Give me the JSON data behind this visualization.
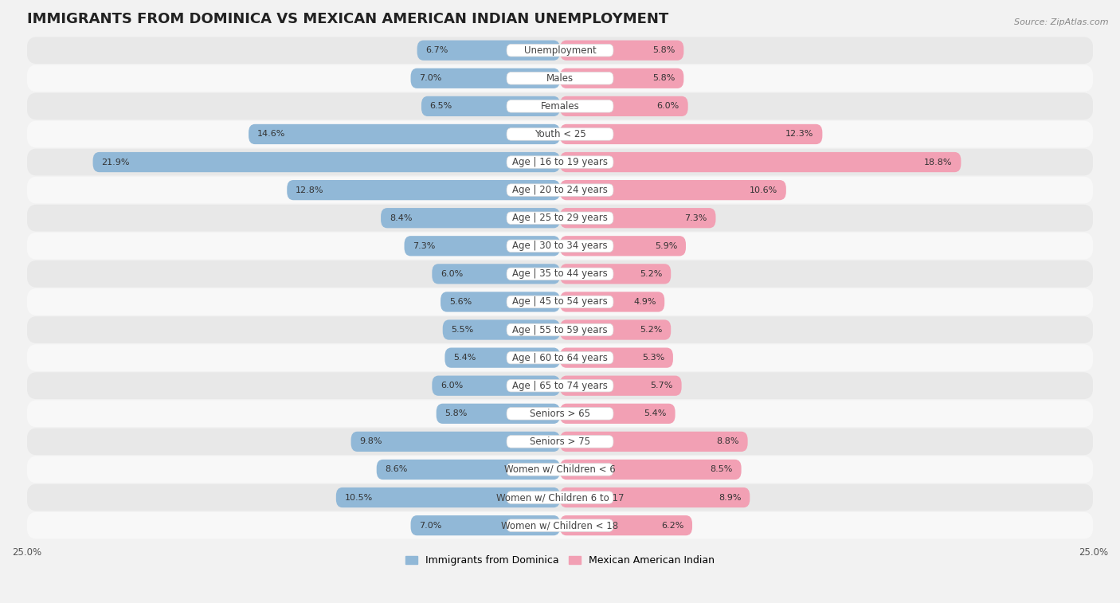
{
  "title": "IMMIGRANTS FROM DOMINICA VS MEXICAN AMERICAN INDIAN UNEMPLOYMENT",
  "source": "Source: ZipAtlas.com",
  "categories": [
    "Unemployment",
    "Males",
    "Females",
    "Youth < 25",
    "Age | 16 to 19 years",
    "Age | 20 to 24 years",
    "Age | 25 to 29 years",
    "Age | 30 to 34 years",
    "Age | 35 to 44 years",
    "Age | 45 to 54 years",
    "Age | 55 to 59 years",
    "Age | 60 to 64 years",
    "Age | 65 to 74 years",
    "Seniors > 65",
    "Seniors > 75",
    "Women w/ Children < 6",
    "Women w/ Children 6 to 17",
    "Women w/ Children < 18"
  ],
  "dominica_values": [
    6.7,
    7.0,
    6.5,
    14.6,
    21.9,
    12.8,
    8.4,
    7.3,
    6.0,
    5.6,
    5.5,
    5.4,
    6.0,
    5.8,
    9.8,
    8.6,
    10.5,
    7.0
  ],
  "mexican_values": [
    5.8,
    5.8,
    6.0,
    12.3,
    18.8,
    10.6,
    7.3,
    5.9,
    5.2,
    4.9,
    5.2,
    5.3,
    5.7,
    5.4,
    8.8,
    8.5,
    8.9,
    6.2
  ],
  "dominica_color": "#91b8d7",
  "mexican_color": "#f2a0b4",
  "dominica_label": "Immigrants from Dominica",
  "mexican_label": "Mexican American Indian",
  "xlim": 25.0,
  "bg_color": "#f2f2f2",
  "row_color_odd": "#e8e8e8",
  "row_color_even": "#f8f8f8",
  "title_fontsize": 13,
  "label_fontsize": 8.5,
  "value_fontsize": 8,
  "axis_label_fontsize": 8.5
}
